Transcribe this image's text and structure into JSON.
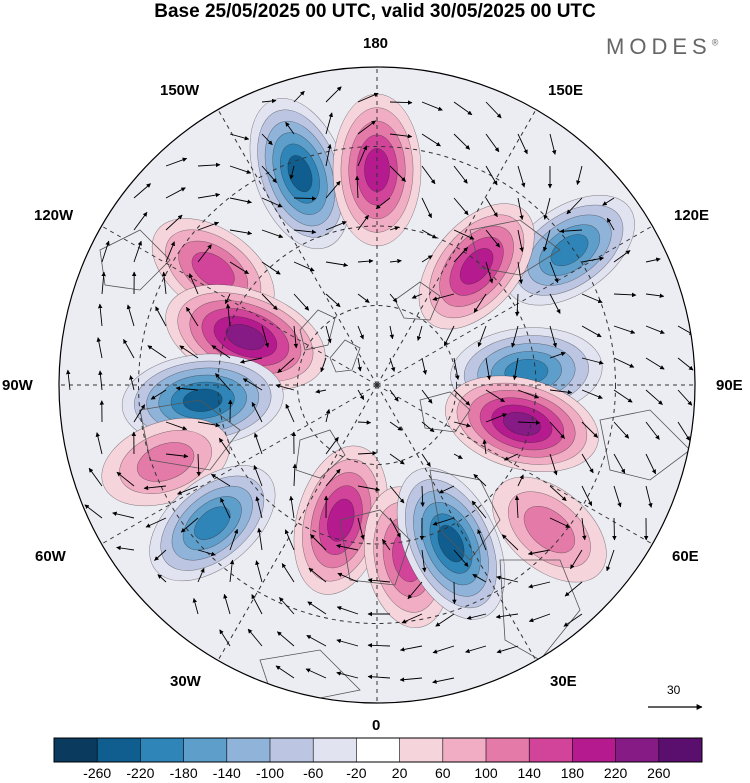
{
  "title": "Base 25/05/2025 00 UTC, valid 30/05/2025 00 UTC",
  "brand": "MODES",
  "brand_mark": "®",
  "longitude_labels": {
    "top": "180",
    "top_left": "150W",
    "top_right": "150E",
    "upper_left": "120W",
    "upper_right": "120E",
    "left": "90W",
    "right": "90E",
    "lower_left": "60W",
    "lower_right": "60E",
    "bottom_left": "30W",
    "bottom_right": "30E",
    "bottom": "0"
  },
  "wind_reference": {
    "value": "30"
  },
  "colorbar": {
    "ticks": [
      "-260",
      "-220",
      "-180",
      "-140",
      "-100",
      "-60",
      "-20",
      "20",
      "60",
      "100",
      "140",
      "180",
      "220",
      "260"
    ],
    "colors": [
      "#0a3a5e",
      "#0f5e8f",
      "#2f85b8",
      "#5d9ecb",
      "#8fb3d9",
      "#bcc6e3",
      "#e2e3f0",
      "#ffffff",
      "#f6d4dc",
      "#f0adc3",
      "#e47aa8",
      "#d2449a",
      "#b51a8f",
      "#861b86",
      "#5a0f6e"
    ]
  },
  "chart_data": {
    "type": "map",
    "projection": "north polar stereographic",
    "variable_range": [
      -260,
      260
    ],
    "anomaly_centers": [
      {
        "lon": -160,
        "sign": "negative",
        "magnitude": 220
      },
      {
        "lon": 180,
        "sign": "positive",
        "magnitude": 200
      },
      {
        "lon": 125,
        "sign": "negative",
        "magnitude": 180
      },
      {
        "lon": 140,
        "sign": "positive",
        "magnitude": 180
      },
      {
        "lon": -125,
        "sign": "positive",
        "magnitude": 140
      },
      {
        "lon": -110,
        "sign": "positive",
        "magnitude": 260
      },
      {
        "lon": 95,
        "sign": "negative",
        "magnitude": 200
      },
      {
        "lon": -85,
        "sign": "negative",
        "magnitude": 240
      },
      {
        "lon": 75,
        "sign": "positive",
        "magnitude": 220
      },
      {
        "lon": -70,
        "sign": "positive",
        "magnitude": 120
      },
      {
        "lon": -50,
        "sign": "negative",
        "magnitude": 180
      },
      {
        "lon": -15,
        "sign": "positive",
        "magnitude": 200
      },
      {
        "lon": 10,
        "sign": "positive",
        "magnitude": 160
      },
      {
        "lon": 25,
        "sign": "negative",
        "magnitude": 240
      },
      {
        "lon": 50,
        "sign": "positive",
        "magnitude": 120
      }
    ]
  }
}
